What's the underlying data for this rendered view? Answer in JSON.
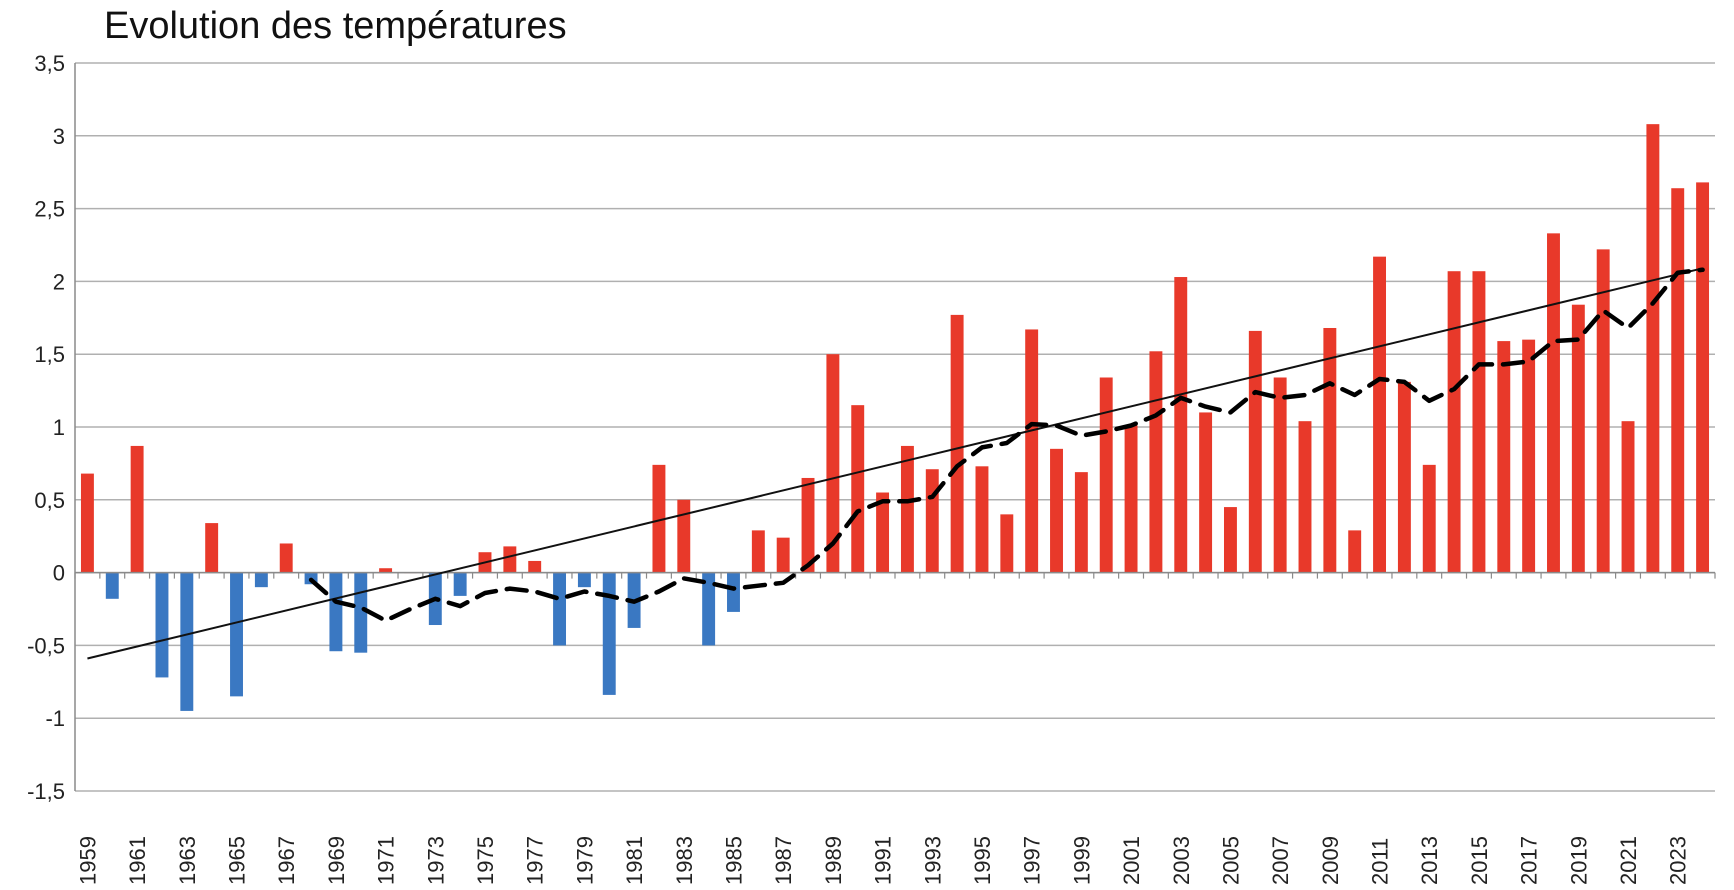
{
  "chart_data": {
    "type": "bar",
    "title": "Evolution des températures",
    "xlabel": "",
    "ylabel": "",
    "ylim": [
      -1.5,
      3.5
    ],
    "ytick_values": [
      -1.5,
      -1,
      -0.5,
      0,
      0.5,
      1,
      1.5,
      2,
      2.5,
      3,
      3.5
    ],
    "ytick_labels": [
      "-1,5",
      "-1",
      "-0,5",
      "0",
      "0,5",
      "1",
      "1,5",
      "2",
      "2,5",
      "3",
      "3,5"
    ],
    "grid": true,
    "legend": "none",
    "positive_color": "#e8392a",
    "negative_color": "#3a78c2",
    "categories": [
      "1959",
      "1960",
      "1961",
      "1962",
      "1963",
      "1964",
      "1965",
      "1966",
      "1967",
      "1968",
      "1969",
      "1970",
      "1971",
      "1972",
      "1973",
      "1974",
      "1975",
      "1976",
      "1977",
      "1978",
      "1979",
      "1980",
      "1981",
      "1982",
      "1983",
      "1984",
      "1985",
      "1986",
      "1987",
      "1988",
      "1989",
      "1990",
      "1991",
      "1992",
      "1993",
      "1994",
      "1995",
      "1996",
      "1997",
      "1998",
      "1999",
      "2000",
      "2001",
      "2002",
      "2003",
      "2004",
      "2005",
      "2006",
      "2007",
      "2008",
      "2009",
      "2010",
      "2011",
      "2012",
      "2013",
      "2014",
      "2015",
      "2016",
      "2017",
      "2018",
      "2019",
      "2020",
      "2021",
      "2022",
      "2023",
      "2024"
    ],
    "xtick_labels": [
      "1959",
      "1961",
      "1963",
      "1965",
      "1967",
      "1969",
      "1971",
      "1973",
      "1975",
      "1977",
      "1979",
      "1981",
      "1983",
      "1985",
      "1987",
      "1989",
      "1991",
      "1993",
      "1995",
      "1997",
      "1999",
      "2001",
      "2003",
      "2005",
      "2007",
      "2009",
      "2011",
      "2013",
      "2015",
      "2017",
      "2019",
      "2021",
      "2023"
    ],
    "values": [
      0.68,
      -0.18,
      0.87,
      -0.72,
      -0.95,
      0.34,
      -0.85,
      -0.1,
      0.2,
      -0.08,
      -0.54,
      -0.55,
      0.03,
      0,
      -0.36,
      -0.16,
      0.14,
      0.18,
      0.08,
      -0.5,
      -0.1,
      -0.84,
      -0.38,
      0.74,
      0.5,
      -0.5,
      -0.27,
      0.29,
      0.24,
      0.65,
      1.5,
      1.15,
      0.55,
      0.87,
      0.71,
      1.77,
      0.73,
      0.4,
      1.67,
      0.85,
      0.69,
      1.34,
      1.01,
      1.52,
      2.03,
      1.1,
      0.45,
      1.66,
      1.34,
      1.04,
      1.68,
      0.29,
      2.17,
      1.31,
      0.74,
      2.07,
      2.07,
      1.59,
      1.6,
      2.33,
      1.84,
      2.22,
      1.04,
      3.08,
      2.64,
      2.68
    ],
    "trend_line": {
      "style": "solid",
      "color": "#111111",
      "start": {
        "x": "1959",
        "y": -0.59
      },
      "end": {
        "x": "2024",
        "y": 2.09
      }
    },
    "moving_average": {
      "style": "dashed",
      "color": "#000000",
      "points": [
        {
          "x": "1968",
          "y": -0.05
        },
        {
          "x": "1969",
          "y": -0.2
        },
        {
          "x": "1970",
          "y": -0.24
        },
        {
          "x": "1971",
          "y": -0.33
        },
        {
          "x": "1972",
          "y": -0.25
        },
        {
          "x": "1973",
          "y": -0.18
        },
        {
          "x": "1974",
          "y": -0.23
        },
        {
          "x": "1975",
          "y": -0.14
        },
        {
          "x": "1976",
          "y": -0.11
        },
        {
          "x": "1977",
          "y": -0.13
        },
        {
          "x": "1978",
          "y": -0.18
        },
        {
          "x": "1979",
          "y": -0.13
        },
        {
          "x": "1980",
          "y": -0.16
        },
        {
          "x": "1981",
          "y": -0.2
        },
        {
          "x": "1982",
          "y": -0.13
        },
        {
          "x": "1983",
          "y": -0.04
        },
        {
          "x": "1984",
          "y": -0.07
        },
        {
          "x": "1985",
          "y": -0.11
        },
        {
          "x": "1986",
          "y": -0.09
        },
        {
          "x": "1987",
          "y": -0.07
        },
        {
          "x": "1988",
          "y": 0.05
        },
        {
          "x": "1989",
          "y": 0.2
        },
        {
          "x": "1990",
          "y": 0.42
        },
        {
          "x": "1991",
          "y": 0.49
        },
        {
          "x": "1992",
          "y": 0.49
        },
        {
          "x": "1993",
          "y": 0.52
        },
        {
          "x": "1994",
          "y": 0.73
        },
        {
          "x": "1995",
          "y": 0.86
        },
        {
          "x": "1996",
          "y": 0.89
        },
        {
          "x": "1997",
          "y": 1.02
        },
        {
          "x": "1998",
          "y": 1.01
        },
        {
          "x": "1999",
          "y": 0.94
        },
        {
          "x": "2000",
          "y": 0.97
        },
        {
          "x": "2001",
          "y": 1.01
        },
        {
          "x": "2002",
          "y": 1.08
        },
        {
          "x": "2003",
          "y": 1.2
        },
        {
          "x": "2004",
          "y": 1.14
        },
        {
          "x": "2005",
          "y": 1.1
        },
        {
          "x": "2006",
          "y": 1.24
        },
        {
          "x": "2007",
          "y": 1.2
        },
        {
          "x": "2008",
          "y": 1.22
        },
        {
          "x": "2009",
          "y": 1.3
        },
        {
          "x": "2010",
          "y": 1.22
        },
        {
          "x": "2011",
          "y": 1.33
        },
        {
          "x": "2012",
          "y": 1.31
        },
        {
          "x": "2013",
          "y": 1.18
        },
        {
          "x": "2014",
          "y": 1.26
        },
        {
          "x": "2015",
          "y": 1.43
        },
        {
          "x": "2016",
          "y": 1.43
        },
        {
          "x": "2017",
          "y": 1.45
        },
        {
          "x": "2018",
          "y": 1.59
        },
        {
          "x": "2019",
          "y": 1.6
        },
        {
          "x": "2020",
          "y": 1.8
        },
        {
          "x": "2021",
          "y": 1.68
        },
        {
          "x": "2022",
          "y": 1.85
        },
        {
          "x": "2023",
          "y": 2.06
        },
        {
          "x": "2024",
          "y": 2.08
        }
      ]
    }
  }
}
